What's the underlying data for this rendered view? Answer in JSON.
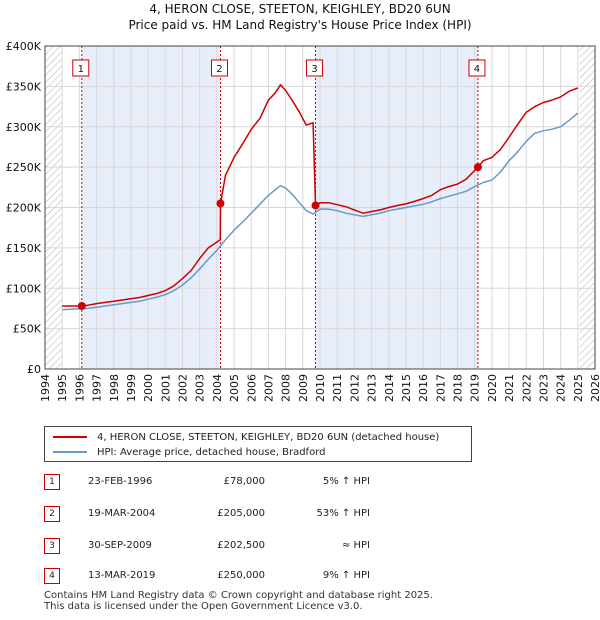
{
  "chart_data": {
    "type": "line",
    "title": "4, HERON CLOSE, STEETON, KEIGHLEY, BD20 6UN",
    "subtitle": "Price paid vs. HM Land Registry's House Price Index (HPI)",
    "xlim": [
      1994,
      2026
    ],
    "ylim": [
      0,
      400000
    ],
    "x_ticks": [
      "1994",
      "1995",
      "1996",
      "1997",
      "1998",
      "1999",
      "2000",
      "2001",
      "2002",
      "2003",
      "2004",
      "2005",
      "2006",
      "2007",
      "2008",
      "2009",
      "2010",
      "2011",
      "2012",
      "2013",
      "2014",
      "2015",
      "2016",
      "2017",
      "2018",
      "2019",
      "2020",
      "2021",
      "2022",
      "2023",
      "2024",
      "2025",
      "2026"
    ],
    "y_ticks": [
      {
        "value": 0,
        "label": "£0"
      },
      {
        "value": 50000,
        "label": "£50K"
      },
      {
        "value": 100000,
        "label": "£100K"
      },
      {
        "value": 150000,
        "label": "£150K"
      },
      {
        "value": 200000,
        "label": "£200K"
      },
      {
        "value": 250000,
        "label": "£250K"
      },
      {
        "value": 300000,
        "label": "£300K"
      },
      {
        "value": 350000,
        "label": "£350K"
      },
      {
        "value": 400000,
        "label": "£400K"
      }
    ],
    "data_range": [
      1995,
      2025.1
    ],
    "series": [
      {
        "name": "4, HERON CLOSE, STEETON, KEIGHLEY, BD20 6UN (detached house)",
        "color": "#cc0000",
        "x": [
          1995,
          1995.5,
          1996.14,
          1996.5,
          1997,
          1997.5,
          1998,
          1998.5,
          1999,
          1999.5,
          2000,
          2000.5,
          2001,
          2001.5,
          2002,
          2002.5,
          2003,
          2003.5,
          2004.2,
          2004.21,
          2004.5,
          2005,
          2005.5,
          2006,
          2006.5,
          2007,
          2007.4,
          2007.7,
          2008,
          2008.4,
          2008.8,
          2009.2,
          2009.6,
          2009.7,
          2009.74,
          2010,
          2010.5,
          2011,
          2011.5,
          2012,
          2012.5,
          2013,
          2013.5,
          2014,
          2014.5,
          2015,
          2015.5,
          2016,
          2016.5,
          2017,
          2017.5,
          2018,
          2018.5,
          2019.19,
          2019.5,
          2020,
          2020.5,
          2021,
          2021.5,
          2022,
          2022.5,
          2023,
          2023.5,
          2024,
          2024.5,
          2025
        ],
        "y": [
          78000,
          78000,
          78000,
          79000,
          81000,
          82500,
          84000,
          85500,
          87000,
          88500,
          91000,
          93500,
          97000,
          103000,
          112000,
          122000,
          137000,
          150000,
          160000,
          205000,
          240000,
          262000,
          279000,
          297000,
          310000,
          333000,
          342000,
          352000,
          345000,
          332000,
          318000,
          302000,
          305000,
          232000,
          202500,
          206000,
          206000,
          203500,
          201000,
          197000,
          193000,
          195000,
          197000,
          200000,
          202500,
          204500,
          207500,
          211000,
          215000,
          222000,
          226000,
          229000,
          235000,
          250000,
          258000,
          262000,
          272000,
          287000,
          303000,
          318000,
          325000,
          330000,
          333000,
          337000,
          344000,
          348000
        ]
      },
      {
        "name": "HPI: Average price, detached house, Bradford",
        "color": "#6699cc",
        "x": [
          1995,
          1995.5,
          1996,
          1996.5,
          1997,
          1997.5,
          1998,
          1998.5,
          1999,
          1999.5,
          2000,
          2000.5,
          2001,
          2001.5,
          2002,
          2002.5,
          2003,
          2003.5,
          2004,
          2004.5,
          2005,
          2005.5,
          2006,
          2006.5,
          2007,
          2007.4,
          2007.7,
          2008,
          2008.4,
          2008.8,
          2009.2,
          2009.6,
          2010,
          2010.5,
          2011,
          2011.5,
          2012,
          2012.5,
          2013,
          2013.5,
          2014,
          2014.5,
          2015,
          2015.5,
          2016,
          2016.5,
          2017,
          2017.5,
          2018,
          2018.5,
          2019,
          2019.5,
          2020,
          2020.5,
          2021,
          2021.5,
          2022,
          2022.5,
          2023,
          2023.5,
          2024,
          2024.5,
          2025
        ],
        "y": [
          73500,
          74000,
          74500,
          75000,
          76500,
          78000,
          79500,
          81000,
          82500,
          84000,
          86500,
          89000,
          92000,
          97000,
          104000,
          113000,
          124000,
          136000,
          147000,
          160000,
          172000,
          182000,
          193000,
          204000,
          215000,
          222000,
          227000,
          224000,
          216000,
          206000,
          196000,
          192000,
          198000,
          198000,
          196000,
          193000,
          191000,
          189000,
          191000,
          193000,
          196000,
          198000,
          200000,
          202000,
          204000,
          207000,
          211000,
          214000,
          217000,
          220000,
          226000,
          231000,
          234000,
          244000,
          258000,
          269000,
          282000,
          292000,
          295000,
          297000,
          300000,
          308000,
          317000
        ]
      }
    ],
    "sales": [
      {
        "num": "1",
        "x": 1996.14,
        "y": 78000,
        "date": "23-FEB-1996",
        "price": "£78,000",
        "hpi": "5% ↑ HPI"
      },
      {
        "num": "2",
        "x": 2004.21,
        "y": 205000,
        "date": "19-MAR-2004",
        "price": "£205,000",
        "hpi": "53% ↑ HPI"
      },
      {
        "num": "3",
        "x": 2009.74,
        "y": 202500,
        "date": "30-SEP-2009",
        "price": "£202,500",
        "hpi": "≈ HPI"
      },
      {
        "num": "4",
        "x": 2019.19,
        "y": 250000,
        "date": "13-MAR-2019",
        "price": "£250,000",
        "hpi": "9% ↑ HPI"
      }
    ]
  },
  "legend": {
    "property_label": "4, HERON CLOSE, STEETON, KEIGHLEY, BD20 6UN (detached house)",
    "hpi_label": "HPI: Average price, detached house, Bradford"
  },
  "footer": {
    "line1": "Contains HM Land Registry data © Crown copyright and database right 2025.",
    "line2": "This data is licensed under the Open Government Licence v3.0."
  }
}
